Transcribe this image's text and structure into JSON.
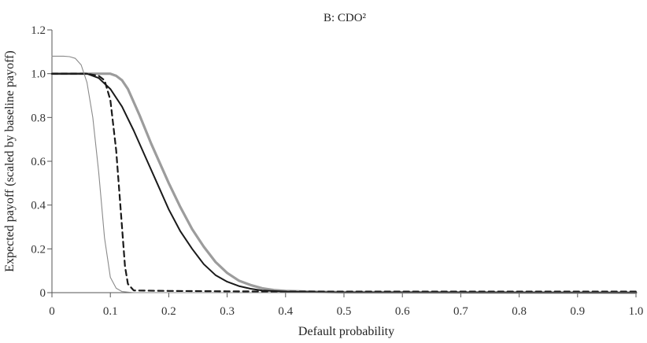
{
  "chart_data": {
    "type": "line",
    "title": "B: CDO²",
    "xlabel": "Default probability",
    "ylabel": "Expected payoff (scaled by baseline payoff)",
    "xlim": [
      0,
      1.0
    ],
    "ylim": [
      0,
      1.2
    ],
    "xticks": [
      "0",
      "0.1",
      "0.2",
      "0.3",
      "0.4",
      "0.5",
      "0.6",
      "0.7",
      "0.8",
      "0.9",
      "1.0"
    ],
    "yticks": [
      "0",
      "0.2",
      "0.4",
      "0.6",
      "0.8",
      "1.0",
      "1.2"
    ],
    "grid": false,
    "series": [
      {
        "color": "#9c9c9c",
        "style": "thick",
        "x": [
          0,
          0.05,
          0.09,
          0.1,
          0.11,
          0.12,
          0.13,
          0.15,
          0.17,
          0.2,
          0.22,
          0.24,
          0.26,
          0.28,
          0.3,
          0.32,
          0.34,
          0.36,
          0.38,
          0.4,
          0.45,
          0.5,
          1.0
        ],
        "y": [
          1.0,
          1.0,
          1.0,
          1.0,
          0.99,
          0.97,
          0.93,
          0.81,
          0.68,
          0.5,
          0.39,
          0.29,
          0.21,
          0.14,
          0.09,
          0.055,
          0.035,
          0.02,
          0.012,
          0.008,
          0.004,
          0.002,
          0.0
        ]
      },
      {
        "color": "#1a1a1a",
        "style": "solid",
        "x": [
          0,
          0.06,
          0.08,
          0.1,
          0.12,
          0.14,
          0.16,
          0.18,
          0.2,
          0.22,
          0.24,
          0.26,
          0.28,
          0.3,
          0.32,
          0.34,
          0.36,
          0.4,
          0.45,
          0.5,
          1.0
        ],
        "y": [
          1.0,
          1.0,
          0.98,
          0.93,
          0.85,
          0.74,
          0.62,
          0.5,
          0.38,
          0.28,
          0.2,
          0.13,
          0.08,
          0.05,
          0.03,
          0.018,
          0.01,
          0.005,
          0.002,
          0.001,
          0.0
        ]
      },
      {
        "color": "#1a1a1a",
        "style": "dashed",
        "x": [
          0,
          0.06,
          0.08,
          0.09,
          0.1,
          0.11,
          0.12,
          0.125,
          0.13,
          0.14,
          0.2,
          0.3,
          0.4,
          0.5,
          1.0
        ],
        "y": [
          1.0,
          1.0,
          0.99,
          0.97,
          0.88,
          0.65,
          0.3,
          0.12,
          0.04,
          0.01,
          0.008,
          0.006,
          0.005,
          0.005,
          0.005
        ]
      },
      {
        "color": "#8a8a8a",
        "style": "thin",
        "x": [
          0,
          0.02,
          0.03,
          0.04,
          0.05,
          0.06,
          0.07,
          0.08,
          0.09,
          0.1,
          0.11,
          0.12,
          0.14,
          0.2,
          0.5,
          1.0
        ],
        "y": [
          1.08,
          1.08,
          1.078,
          1.07,
          1.04,
          0.96,
          0.8,
          0.55,
          0.25,
          0.07,
          0.02,
          0.005,
          0.0,
          0.0,
          0.0,
          0.0
        ]
      }
    ]
  }
}
